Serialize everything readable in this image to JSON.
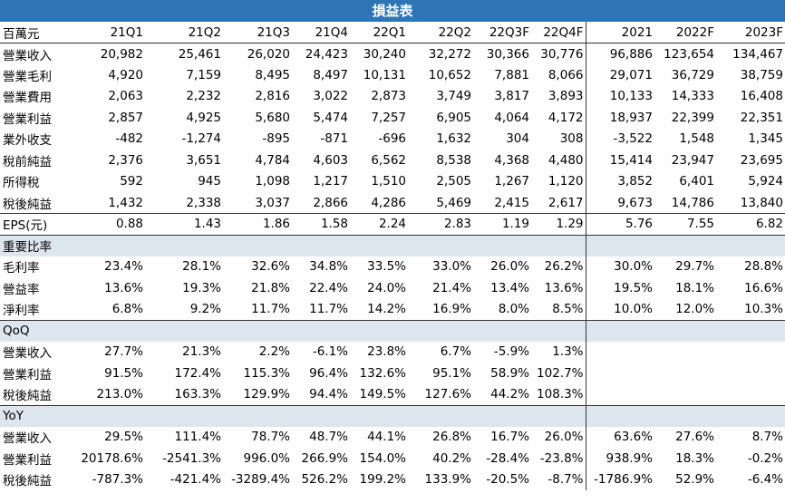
{
  "title": "損益表",
  "header": [
    "百萬元",
    "21Q1",
    "21Q2",
    "21Q3",
    "21Q4",
    "22Q1",
    "22Q2",
    "22Q3F",
    "22Q4F",
    "2021",
    "2022F",
    "2023F"
  ],
  "income_rows": [
    {
      "label": "營業收入",
      "values": [
        "20,982",
        "25,461",
        "26,020",
        "24,423",
        "30,240",
        "32,272",
        "30,366",
        "30,776",
        "96,886",
        "123,654",
        "134,467"
      ]
    },
    {
      "label": "營業毛利",
      "values": [
        "4,920",
        "7,159",
        "8,495",
        "8,497",
        "10,131",
        "10,652",
        "7,881",
        "8,066",
        "29,071",
        "36,729",
        "38,759"
      ]
    },
    {
      "label": "營業費用",
      "values": [
        "2,063",
        "2,232",
        "2,816",
        "3,022",
        "2,873",
        "3,749",
        "3,817",
        "3,893",
        "10,133",
        "14,333",
        "16,408"
      ]
    },
    {
      "label": "營業利益",
      "values": [
        "2,857",
        "4,925",
        "5,680",
        "5,474",
        "7,257",
        "6,905",
        "4,064",
        "4,172",
        "18,937",
        "22,399",
        "22,351"
      ]
    },
    {
      "label": "業外收支",
      "values": [
        "-482",
        "-1,274",
        "-895",
        "-871",
        "-696",
        "1,632",
        "304",
        "308",
        "-3,522",
        "1,548",
        "1,345"
      ]
    },
    {
      "label": "稅前純益",
      "values": [
        "2,376",
        "3,651",
        "4,784",
        "4,603",
        "6,562",
        "8,538",
        "4,368",
        "4,480",
        "15,414",
        "23,947",
        "23,695"
      ]
    },
    {
      "label": "所得稅",
      "values": [
        "592",
        "945",
        "1,098",
        "1,217",
        "1,510",
        "2,505",
        "1,267",
        "1,120",
        "3,852",
        "6,401",
        "5,924"
      ]
    },
    {
      "label": "稅後純益",
      "values": [
        "1,432",
        "2,338",
        "3,037",
        "2,866",
        "4,286",
        "5,469",
        "2,415",
        "2,617",
        "9,673",
        "14,786",
        "13,840"
      ]
    }
  ],
  "eps_row": {
    "label": "EPS(元)",
    "values": [
      "0.88",
      "1.43",
      "1.86",
      "1.58",
      "2.24",
      "2.83",
      "1.19",
      "1.29",
      "5.76",
      "7.55",
      "6.82"
    ]
  },
  "ratio_section": "重要比率",
  "ratio_rows": [
    {
      "label": "毛利率",
      "values": [
        "23.4%",
        "28.1%",
        "32.6%",
        "34.8%",
        "33.5%",
        "33.0%",
        "26.0%",
        "26.2%",
        "30.0%",
        "29.7%",
        "28.8%"
      ]
    },
    {
      "label": "營益率",
      "values": [
        "13.6%",
        "19.3%",
        "21.8%",
        "22.4%",
        "24.0%",
        "21.4%",
        "13.4%",
        "13.6%",
        "19.5%",
        "18.1%",
        "16.6%"
      ]
    },
    {
      "label": "淨利率",
      "values": [
        "6.8%",
        "9.2%",
        "11.7%",
        "11.7%",
        "14.2%",
        "16.9%",
        "8.0%",
        "8.5%",
        "10.0%",
        "12.0%",
        "10.3%"
      ]
    }
  ],
  "qoq_section": "QoQ",
  "qoq_rows": [
    {
      "label": "營業收入",
      "values": [
        "27.7%",
        "21.3%",
        "2.2%",
        "-6.1%",
        "23.8%",
        "6.7%",
        "-5.9%",
        "1.3%",
        "",
        "",
        ""
      ]
    },
    {
      "label": "營業利益",
      "values": [
        "91.5%",
        "172.4%",
        "115.3%",
        "96.4%",
        "132.6%",
        "95.1%",
        "58.9%",
        "102.7%",
        "",
        "",
        ""
      ]
    },
    {
      "label": "稅後純益",
      "values": [
        "213.0%",
        "163.3%",
        "129.9%",
        "94.4%",
        "149.5%",
        "127.6%",
        "44.2%",
        "108.3%",
        "",
        "",
        ""
      ]
    }
  ],
  "yoy_section": "YoY",
  "yoy_rows": [
    {
      "label": "營業收入",
      "values": [
        "29.5%",
        "111.4%",
        "78.7%",
        "48.7%",
        "44.1%",
        "26.8%",
        "16.7%",
        "26.0%",
        "63.6%",
        "27.6%",
        "8.7%"
      ]
    },
    {
      "label": "營業利益",
      "values": [
        "20178.6%",
        "-2541.3%",
        "996.0%",
        "266.9%",
        "154.0%",
        "40.2%",
        "-28.4%",
        "-23.8%",
        "938.9%",
        "18.3%",
        "-0.2%"
      ]
    },
    {
      "label": "稅後純益",
      "values": [
        "-787.3%",
        "-421.4%",
        "-3289.4%",
        "526.2%",
        "199.2%",
        "133.9%",
        "-20.5%",
        "-8.7%",
        "-1786.9%",
        "52.9%",
        "-6.4%"
      ]
    }
  ],
  "colors": {
    "title_bg": "#2e75b6",
    "section_bg": "#dde6ef"
  }
}
